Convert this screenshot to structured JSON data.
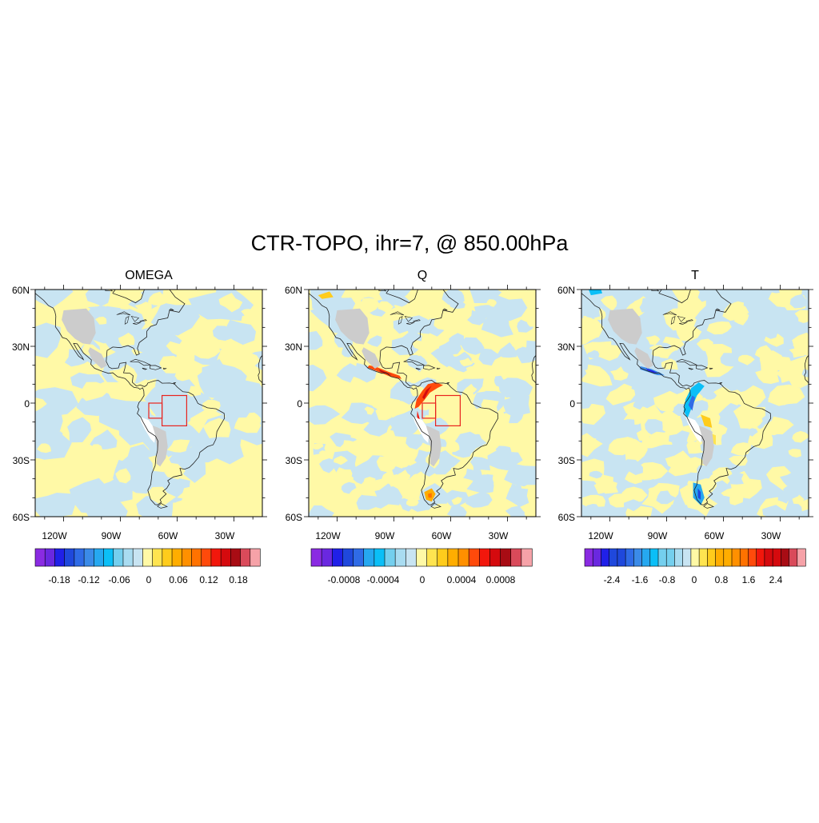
{
  "figure": {
    "title": "CTR-TOPO, ihr=7, @ 850.00hPa"
  },
  "axes": {
    "lat_labels": [
      "60N",
      "30N",
      "0",
      "30S",
      "60S"
    ],
    "lon_labels": [
      "120W",
      "90W",
      "60W",
      "30W"
    ],
    "lat_range": [
      -60,
      60
    ],
    "lon_range": [
      -135,
      -15
    ]
  },
  "colors": {
    "land_mask": "#cccccc",
    "box": "#e8231e",
    "coast": "#222222",
    "palette": [
      "#8a2be2",
      "#6a28e0",
      "#2020e8",
      "#1f48dc",
      "#2f6be6",
      "#3b8be8",
      "#26a8f0",
      "#0bbff7",
      "#74cfee",
      "#a9dcf1",
      "#c8e4f2",
      "#fff9a6",
      "#ffe450",
      "#ffcc1c",
      "#ffad00",
      "#ff9000",
      "#ff7200",
      "#ff4a0b",
      "#f2170c",
      "#d50a0e",
      "#a80c14",
      "#d94a5a",
      "#f6a2a8"
    ]
  },
  "panels": [
    {
      "name": "OMEGA",
      "colorbar_labels": [
        "-0.18",
        "-0.12",
        "-0.06",
        "0",
        "0.06",
        "0.12",
        "0.18"
      ],
      "boxes_deg": [
        [
          -75,
          -68,
          -8,
          0
        ],
        [
          -68,
          -55,
          -12,
          4
        ]
      ]
    },
    {
      "name": "Q",
      "colorbar_labels": [
        "-0.0008",
        "-0.0004",
        "0",
        "0.0004",
        "0.0008"
      ],
      "boxes_deg": [
        [
          -75,
          -68,
          -8,
          0
        ],
        [
          -68,
          -55,
          -12,
          4
        ]
      ]
    },
    {
      "name": "T",
      "colorbar_labels": [
        "-2.4",
        "-1.6",
        "-0.8",
        "0",
        "0.8",
        "1.6",
        "2.4"
      ],
      "boxes_deg": []
    }
  ]
}
